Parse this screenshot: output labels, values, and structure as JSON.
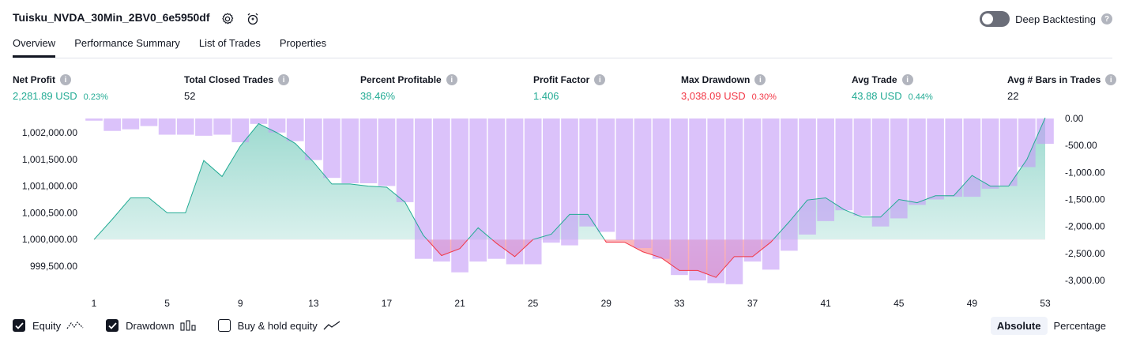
{
  "header": {
    "strategy_name": "Tuisku_NVDA_30Min_2BV0_6e5950df",
    "settings_icon": "gear-icon",
    "add_alert_icon": "alarm-clock-plus-icon",
    "deep_backtesting_label": "Deep Backtesting",
    "deep_backtesting_enabled": false
  },
  "tabs": [
    {
      "label": "Overview",
      "active": true
    },
    {
      "label": "Performance Summary",
      "active": false
    },
    {
      "label": "List of Trades",
      "active": false
    },
    {
      "label": "Properties",
      "active": false
    }
  ],
  "stats": [
    {
      "label": "Net Profit",
      "value": "2,281.89 USD",
      "pct": "0.23%",
      "color": "green"
    },
    {
      "label": "Total Closed Trades",
      "value": "52",
      "pct": "",
      "color": "dark"
    },
    {
      "label": "Percent Profitable",
      "value": "38.46%",
      "pct": "",
      "color": "green"
    },
    {
      "label": "Profit Factor",
      "value": "1.406",
      "pct": "",
      "color": "green"
    },
    {
      "label": "Max Drawdown",
      "value": "3,038.09 USD",
      "pct": "0.30%",
      "color": "red"
    },
    {
      "label": "Avg Trade",
      "value": "43.88 USD",
      "pct": "0.44%",
      "color": "green"
    },
    {
      "label": "Avg # Bars in Trades",
      "value": "22",
      "pct": "",
      "color": "dark"
    }
  ],
  "chart_data": {
    "type": "area",
    "x": [
      1,
      2,
      3,
      4,
      5,
      6,
      7,
      8,
      9,
      10,
      11,
      12,
      13,
      14,
      15,
      16,
      17,
      18,
      19,
      20,
      21,
      22,
      23,
      24,
      25,
      26,
      27,
      28,
      29,
      30,
      31,
      32,
      33,
      34,
      35,
      36,
      37,
      38,
      39,
      40,
      41,
      42,
      43,
      44,
      45,
      46,
      47,
      48,
      49,
      50,
      51,
      52,
      53
    ],
    "x_ticks": [
      "1",
      "5",
      "9",
      "13",
      "17",
      "21",
      "25",
      "29",
      "33",
      "37",
      "41",
      "45",
      "49",
      "53"
    ],
    "left_ticks": [
      "1,002,000.00",
      "1,001,500.00",
      "1,001,000.00",
      "1,000,500.00",
      "1,000,000.00",
      "999,500.00"
    ],
    "right_ticks": [
      "0.00",
      "-500.00",
      "-1,000.00",
      "-1,500.00",
      "-2,000.00",
      "-2,500.00",
      "-3,000.00"
    ],
    "equity_baseline": 1000000,
    "equity_ylim": [
      999300,
      1002250
    ],
    "drawdown_ylim": [
      -3100,
      0
    ],
    "series": [
      {
        "name": "Equity",
        "color": "#22ab94",
        "values": [
          1000000,
          1000380,
          1000780,
          1000780,
          1000500,
          1000500,
          1001480,
          1001180,
          1001750,
          1002170,
          1002000,
          1001800,
          1001450,
          1001040,
          1001040,
          1001000,
          1000980,
          1000700,
          1000080,
          999700,
          999830,
          1000220,
          999930,
          999680,
          1000000,
          1000100,
          1000470,
          1000470,
          999950,
          999950,
          999770,
          999660,
          999420,
          999420,
          999290,
          999680,
          999680,
          999950,
          1000330,
          1000740,
          1000780,
          1000560,
          1000420,
          1000420,
          1000750,
          1000690,
          1000820,
          1000820,
          1001200,
          1001000,
          1001000,
          1001500,
          1002280
        ]
      },
      {
        "name": "Drawdown",
        "color": "#c59cf7",
        "values": [
          -40,
          -230,
          -200,
          -140,
          -300,
          -300,
          -320,
          -300,
          -440,
          -100,
          -260,
          -420,
          -770,
          -1100,
          -1200,
          -1200,
          -1250,
          -1550,
          -2600,
          -2650,
          -2850,
          -2650,
          -2600,
          -2700,
          -2700,
          -2300,
          -2350,
          -2000,
          -2100,
          -2250,
          -2400,
          -2600,
          -2900,
          -3000,
          -3050,
          -3070,
          -2650,
          -2800,
          -2450,
          -2150,
          -1900,
          -1700,
          -1800,
          -2000,
          -1850,
          -1600,
          -1500,
          -1450,
          -1450,
          -1300,
          -1250,
          -900,
          -470
        ]
      }
    ]
  },
  "legend": {
    "equity_label": "Equity",
    "drawdown_label": "Drawdown",
    "buyhold_label": "Buy & hold equity"
  },
  "mode": {
    "absolute_label": "Absolute",
    "percentage_label": "Percentage"
  }
}
